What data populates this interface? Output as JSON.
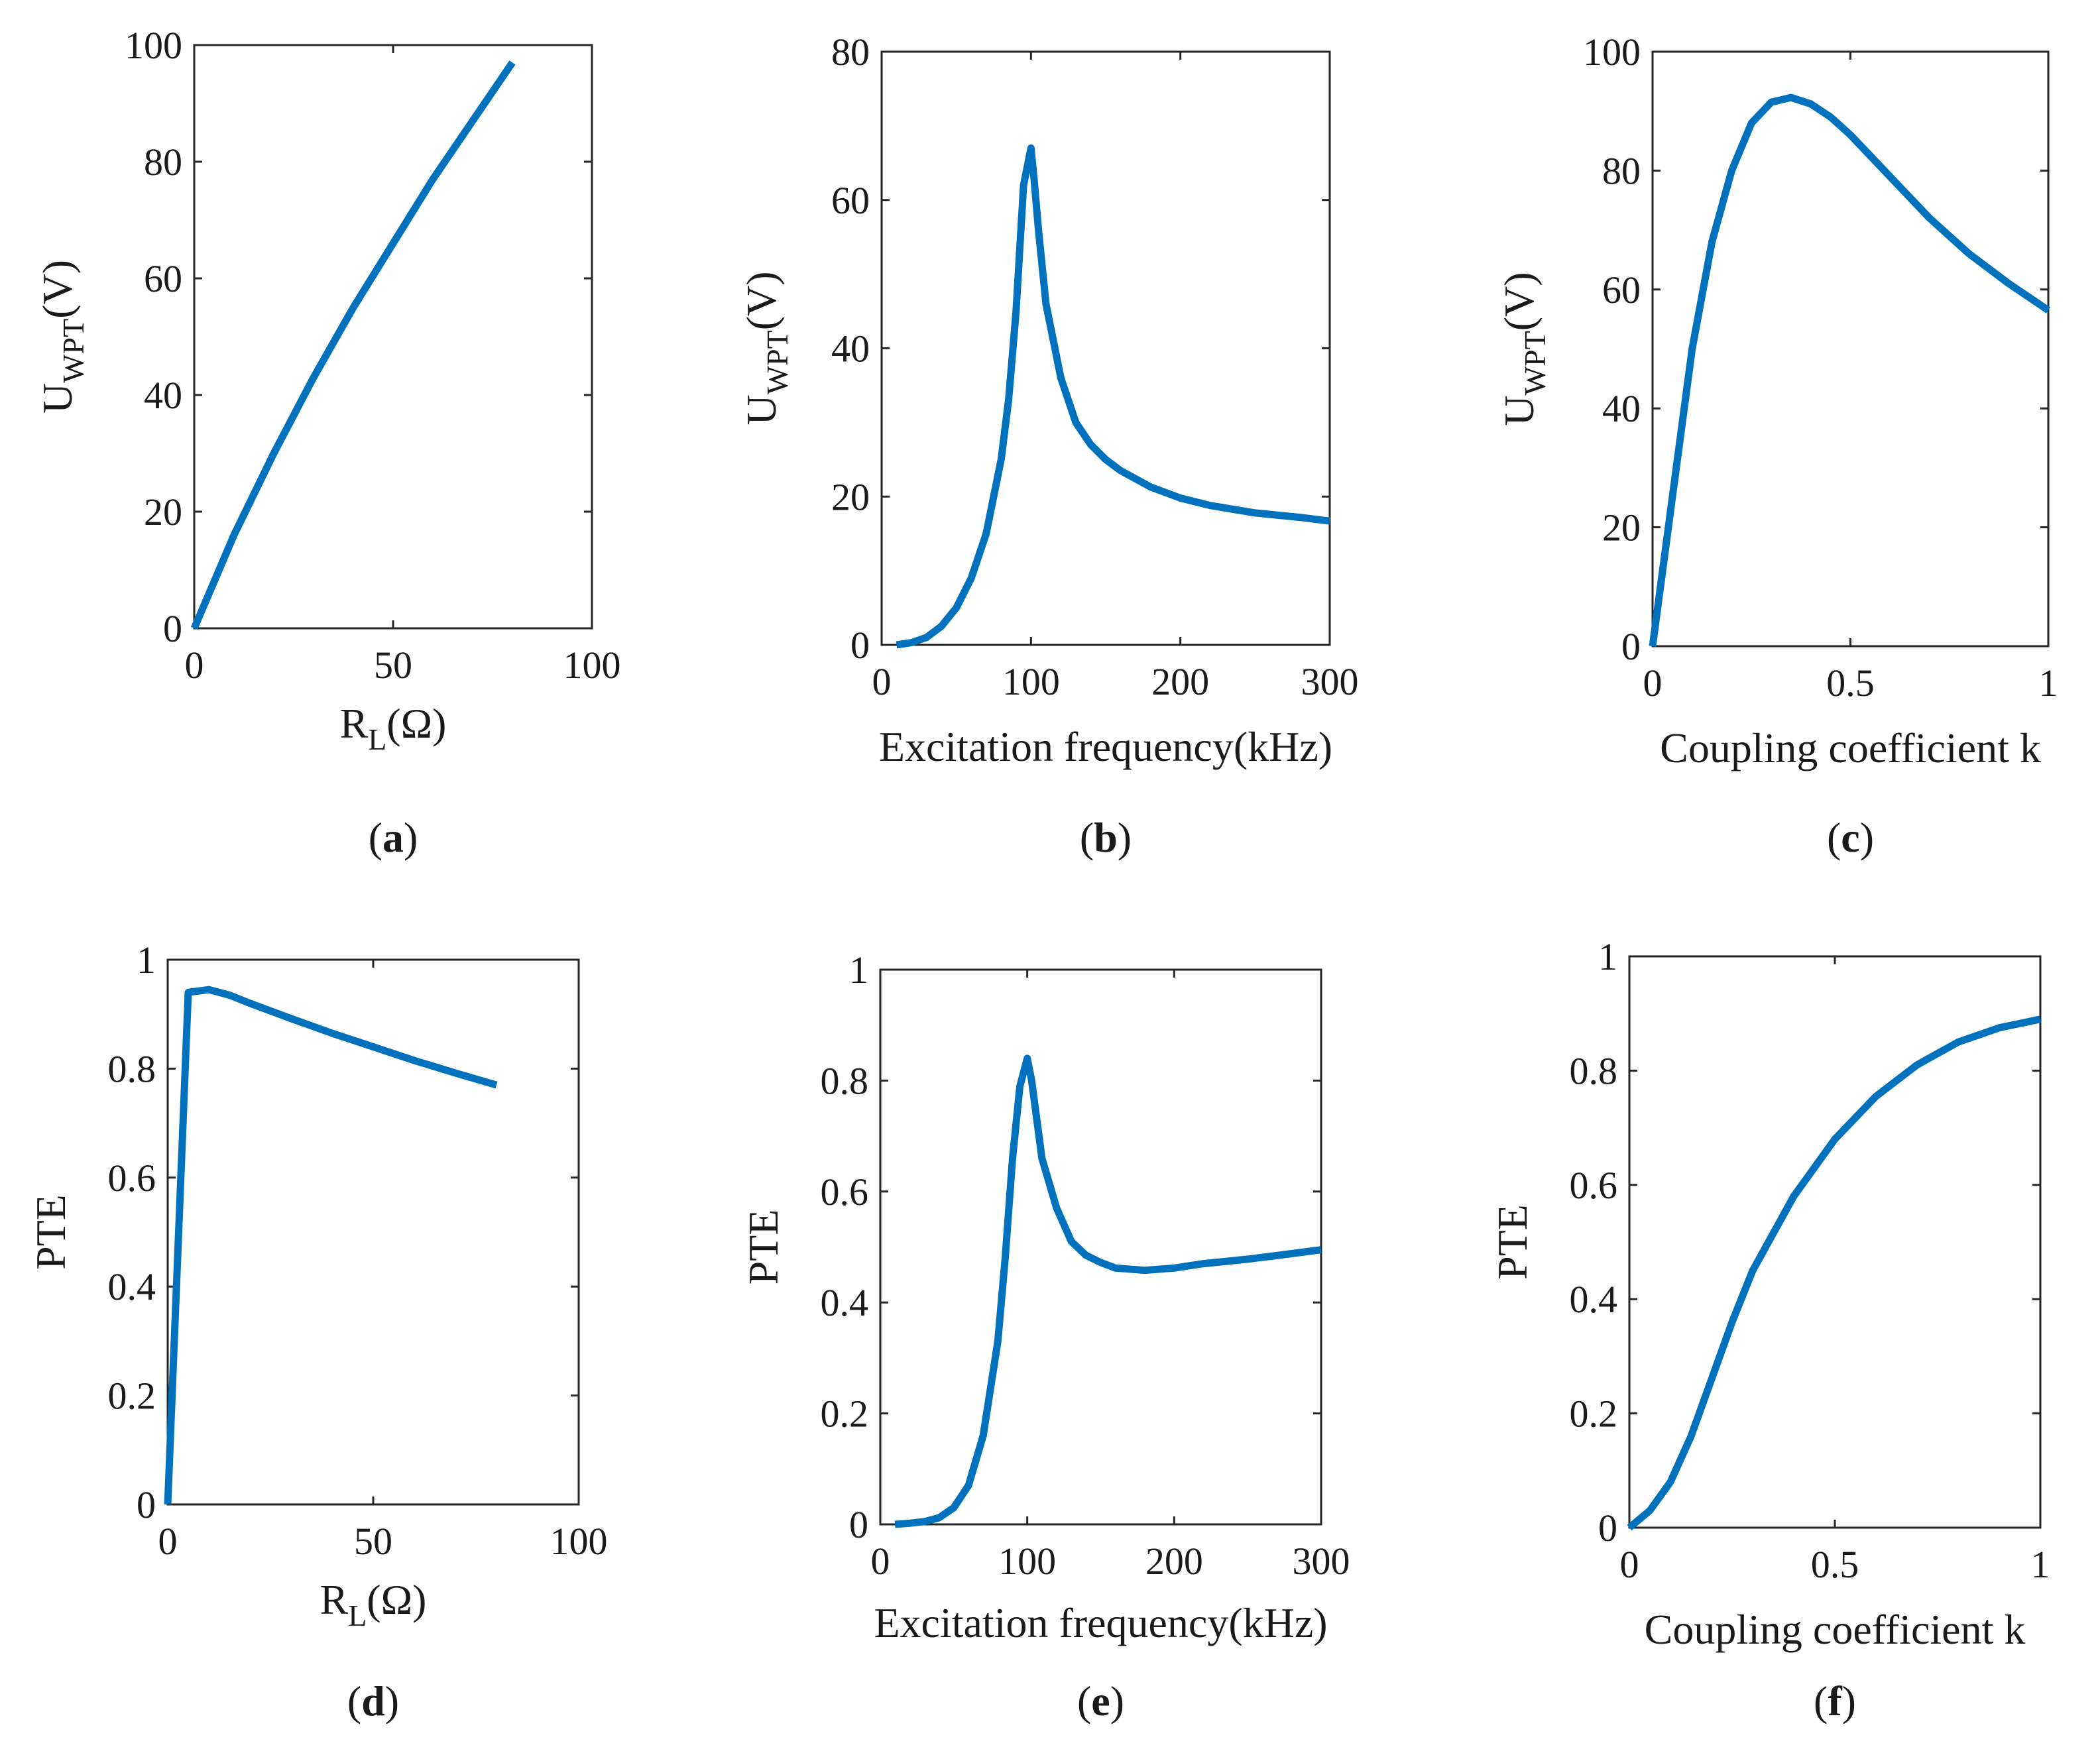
{
  "line_color": "#0072BD",
  "chart_data": [
    {
      "id": "a",
      "type": "line",
      "panel_label": "a",
      "xlabel": "R",
      "xlabel_sub": "L",
      "xlabel_rest": "(Ω)",
      "ylabel": "U",
      "ylabel_sub": "WPT",
      "ylabel_rest": "(V)",
      "xlim": [
        0,
        100
      ],
      "ylim": [
        0,
        100
      ],
      "xticks": [
        0,
        50,
        100
      ],
      "yticks": [
        0,
        20,
        40,
        60,
        80,
        100
      ],
      "xtick_labels": [
        "0",
        "50",
        "100"
      ],
      "ytick_labels": [
        "0",
        "20",
        "40",
        "60",
        "80",
        "100"
      ],
      "series": [
        {
          "name": "U_WPT",
          "x": [
            0,
            5,
            10,
            20,
            30,
            40,
            50,
            60,
            70,
            80
          ],
          "y": [
            0,
            8,
            16,
            30,
            43,
            55,
            66,
            77,
            87,
            97
          ]
        }
      ]
    },
    {
      "id": "b",
      "type": "line",
      "panel_label": "b",
      "xlabel": "Excitation frequency(kHz)",
      "xlabel_sub": "",
      "xlabel_rest": "",
      "ylabel": "U",
      "ylabel_sub": "WPT",
      "ylabel_rest": "(V)",
      "xlim": [
        0,
        300
      ],
      "ylim": [
        0,
        80
      ],
      "xticks": [
        0,
        100,
        200,
        300
      ],
      "yticks": [
        0,
        20,
        40,
        60,
        80
      ],
      "xtick_labels": [
        "0",
        "100",
        "200",
        "300"
      ],
      "ytick_labels": [
        "0",
        "20",
        "40",
        "60",
        "80"
      ],
      "series": [
        {
          "name": "U_WPT",
          "x": [
            10,
            20,
            30,
            40,
            50,
            60,
            70,
            80,
            85,
            90,
            95,
            100,
            102,
            105,
            110,
            120,
            130,
            140,
            150,
            160,
            180,
            200,
            220,
            250,
            280,
            300
          ],
          "y": [
            0,
            0.3,
            1,
            2.5,
            5,
            9,
            15,
            25,
            33,
            45,
            62,
            67,
            63,
            56,
            46,
            36,
            30,
            27,
            25,
            23.5,
            21.3,
            19.8,
            18.8,
            17.8,
            17.2,
            16.7
          ]
        }
      ]
    },
    {
      "id": "c",
      "type": "line",
      "panel_label": "c",
      "xlabel": "Coupling coefficient k",
      "xlabel_sub": "",
      "xlabel_rest": "",
      "ylabel": "U",
      "ylabel_sub": "WPT",
      "ylabel_rest": "(V)",
      "xlim": [
        0,
        1
      ],
      "ylim": [
        0,
        100
      ],
      "xticks": [
        0,
        0.5,
        1
      ],
      "yticks": [
        0,
        20,
        40,
        60,
        80,
        100
      ],
      "xtick_labels": [
        "0",
        "0.5",
        "1"
      ],
      "ytick_labels": [
        "0",
        "20",
        "40",
        "60",
        "80",
        "100"
      ],
      "series": [
        {
          "name": "U_WPT",
          "x": [
            0,
            0.05,
            0.1,
            0.15,
            0.2,
            0.25,
            0.3,
            0.35,
            0.4,
            0.45,
            0.5,
            0.6,
            0.7,
            0.8,
            0.9,
            1.0
          ],
          "y": [
            0,
            25,
            50,
            68,
            80,
            88,
            91.5,
            92.3,
            91.2,
            89,
            86,
            79,
            72,
            66,
            61,
            56.5
          ]
        }
      ]
    },
    {
      "id": "d",
      "type": "line",
      "panel_label": "d",
      "xlabel": "R",
      "xlabel_sub": "L",
      "xlabel_rest": "(Ω)",
      "ylabel": "PTE",
      "ylabel_sub": "",
      "ylabel_rest": "",
      "xlim": [
        0,
        100
      ],
      "ylim": [
        0,
        1
      ],
      "xticks": [
        0,
        50,
        100
      ],
      "yticks": [
        0,
        0.2,
        0.4,
        0.6,
        0.8,
        1
      ],
      "xtick_labels": [
        "0",
        "50",
        "100"
      ],
      "ytick_labels": [
        "0",
        "0.2",
        "0.4",
        "0.6",
        "0.8",
        "1"
      ],
      "series": [
        {
          "name": "PTE",
          "x": [
            0,
            5,
            10,
            15,
            20,
            30,
            40,
            50,
            60,
            70,
            80
          ],
          "y": [
            0,
            0.94,
            0.945,
            0.935,
            0.92,
            0.892,
            0.865,
            0.84,
            0.815,
            0.792,
            0.77
          ]
        }
      ]
    },
    {
      "id": "e",
      "type": "line",
      "panel_label": "e",
      "xlabel": "Excitation frequency(kHz)",
      "xlabel_sub": "",
      "xlabel_rest": "",
      "ylabel": "PTE",
      "ylabel_sub": "",
      "ylabel_rest": "",
      "xlim": [
        0,
        300
      ],
      "ylim": [
        0,
        1
      ],
      "xticks": [
        0,
        100,
        200,
        300
      ],
      "yticks": [
        0,
        0.2,
        0.4,
        0.6,
        0.8,
        1
      ],
      "xtick_labels": [
        "0",
        "100",
        "200",
        "300"
      ],
      "ytick_labels": [
        "0",
        "0.2",
        "0.4",
        "0.6",
        "0.8",
        "1"
      ],
      "series": [
        {
          "name": "PTE",
          "x": [
            10,
            20,
            30,
            40,
            50,
            60,
            70,
            80,
            85,
            90,
            95,
            100,
            103,
            107,
            110,
            120,
            130,
            140,
            150,
            160,
            180,
            200,
            220,
            250,
            280,
            300
          ],
          "y": [
            0,
            0.002,
            0.005,
            0.012,
            0.03,
            0.07,
            0.16,
            0.33,
            0.48,
            0.66,
            0.79,
            0.84,
            0.8,
            0.72,
            0.66,
            0.57,
            0.51,
            0.485,
            0.472,
            0.462,
            0.458,
            0.462,
            0.47,
            0.478,
            0.488,
            0.495
          ]
        }
      ]
    },
    {
      "id": "f",
      "type": "line",
      "panel_label": "f",
      "xlabel": "Coupling coefficient k",
      "xlabel_sub": "",
      "xlabel_rest": "",
      "ylabel": "PTE",
      "ylabel_sub": "",
      "ylabel_rest": "",
      "xlim": [
        0,
        1
      ],
      "ylim": [
        0,
        1
      ],
      "xticks": [
        0,
        0.5,
        1
      ],
      "yticks": [
        0,
        0.2,
        0.4,
        0.6,
        0.8,
        1
      ],
      "xtick_labels": [
        "0",
        "0.5",
        "1"
      ],
      "ytick_labels": [
        "0",
        "0.2",
        "0.4",
        "0.6",
        "0.8",
        "1"
      ],
      "series": [
        {
          "name": "PTE",
          "x": [
            0,
            0.05,
            0.1,
            0.15,
            0.2,
            0.25,
            0.3,
            0.4,
            0.5,
            0.6,
            0.7,
            0.8,
            0.9,
            1.0
          ],
          "y": [
            0,
            0.03,
            0.08,
            0.16,
            0.26,
            0.36,
            0.45,
            0.58,
            0.68,
            0.755,
            0.81,
            0.85,
            0.875,
            0.89
          ]
        }
      ]
    }
  ]
}
